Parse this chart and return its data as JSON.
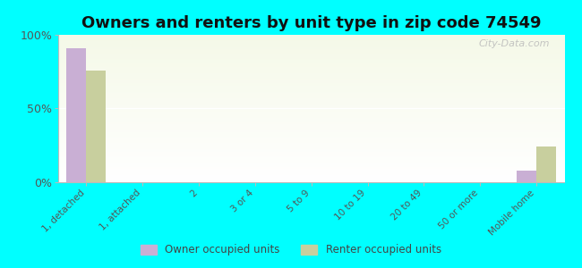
{
  "title": "Owners and renters by unit type in zip code 74549",
  "categories": [
    "1, detached",
    "1, attached",
    "2",
    "3 or 4",
    "5 to 9",
    "10 to 19",
    "20 to 49",
    "50 or more",
    "Mobile home"
  ],
  "owner_values": [
    91,
    0,
    0,
    0,
    0,
    0,
    0,
    0,
    8
  ],
  "renter_values": [
    76,
    0,
    0,
    0,
    0,
    0,
    0,
    0,
    24
  ],
  "owner_color": "#c9afd4",
  "renter_color": "#c8cf9e",
  "background_color": "#00ffff",
  "ylim": [
    0,
    100
  ],
  "yticks": [
    0,
    50,
    100
  ],
  "ytick_labels": [
    "0%",
    "50%",
    "100%"
  ],
  "bar_width": 0.35,
  "title_fontsize": 13,
  "legend_labels": [
    "Owner occupied units",
    "Renter occupied units"
  ],
  "watermark": "City-Data.com"
}
